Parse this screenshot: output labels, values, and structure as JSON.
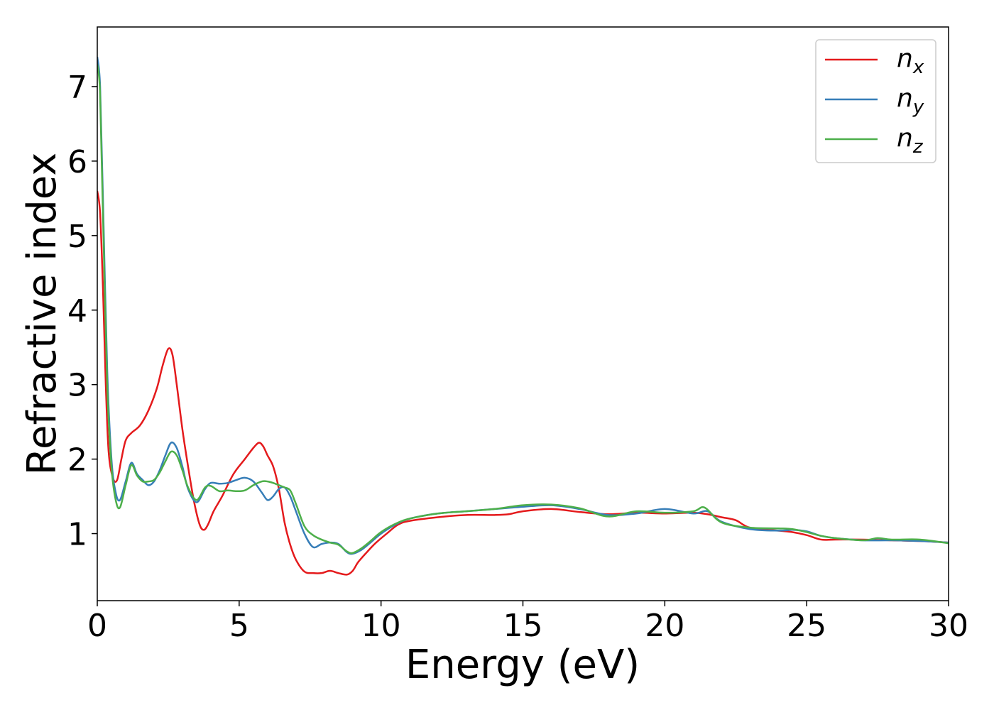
{
  "chart_data": {
    "type": "line",
    "xlabel": "Energy (eV)",
    "ylabel": "Refractive index",
    "xlim": [
      0,
      30
    ],
    "ylim": [
      0.1,
      7.8
    ],
    "xticks": [
      0,
      5,
      10,
      15,
      20,
      25,
      30
    ],
    "yticks": [
      1,
      2,
      3,
      4,
      5,
      6,
      7
    ],
    "grid": false,
    "legend_position": "top-right",
    "series": [
      {
        "name": "n",
        "subscript": "x",
        "color": "#e41a1c",
        "x": [
          0,
          0.1,
          0.2,
          0.3,
          0.4,
          0.55,
          0.7,
          0.85,
          1.0,
          1.2,
          1.5,
          1.8,
          2.1,
          2.3,
          2.5,
          2.65,
          2.8,
          3.0,
          3.2,
          3.4,
          3.6,
          3.75,
          3.9,
          4.1,
          4.4,
          4.8,
          5.2,
          5.5,
          5.7,
          5.85,
          6.0,
          6.2,
          6.4,
          6.6,
          6.8,
          7.0,
          7.3,
          7.6,
          7.9,
          8.2,
          8.5,
          8.8,
          9.0,
          9.2,
          9.5,
          9.8,
          10.2,
          10.6,
          11,
          12,
          13,
          14,
          14.5,
          15,
          16,
          17,
          18,
          19,
          20,
          21,
          21.5,
          22,
          22.5,
          23,
          24,
          24.5,
          25,
          25.5,
          26,
          27,
          28,
          29,
          30
        ],
        "y": [
          5.6,
          5.3,
          4.3,
          3.0,
          2.1,
          1.75,
          1.72,
          2.0,
          2.25,
          2.35,
          2.45,
          2.65,
          2.95,
          3.25,
          3.48,
          3.4,
          3.0,
          2.4,
          1.9,
          1.45,
          1.13,
          1.05,
          1.12,
          1.3,
          1.5,
          1.8,
          2.0,
          2.15,
          2.22,
          2.17,
          2.05,
          1.9,
          1.6,
          1.15,
          0.85,
          0.65,
          0.49,
          0.47,
          0.47,
          0.5,
          0.47,
          0.45,
          0.5,
          0.62,
          0.75,
          0.87,
          1.0,
          1.12,
          1.17,
          1.22,
          1.25,
          1.25,
          1.26,
          1.3,
          1.33,
          1.29,
          1.26,
          1.28,
          1.27,
          1.28,
          1.26,
          1.22,
          1.18,
          1.08,
          1.04,
          1.02,
          0.98,
          0.92,
          0.92,
          0.92,
          0.91,
          0.9,
          0.88
        ]
      },
      {
        "name": "n",
        "subscript": "y",
        "color": "#377eb8",
        "x": [
          0,
          0.1,
          0.2,
          0.35,
          0.5,
          0.65,
          0.8,
          1.0,
          1.2,
          1.4,
          1.6,
          1.8,
          2.0,
          2.2,
          2.4,
          2.6,
          2.8,
          3.0,
          3.2,
          3.5,
          3.8,
          4.0,
          4.3,
          4.6,
          4.9,
          5.2,
          5.5,
          5.8,
          6.0,
          6.2,
          6.4,
          6.6,
          6.8,
          7.0,
          7.3,
          7.6,
          7.9,
          8.2,
          8.5,
          8.8,
          9.0,
          9.3,
          9.6,
          10,
          10.5,
          11,
          12,
          13,
          14,
          15,
          16,
          17,
          18,
          19,
          20,
          21,
          21.5,
          22,
          23,
          24,
          24.5,
          25,
          25.5,
          26,
          27,
          28,
          29,
          30
        ],
        "y": [
          7.4,
          7.0,
          5.5,
          3.2,
          2.0,
          1.55,
          1.45,
          1.7,
          1.95,
          1.8,
          1.72,
          1.65,
          1.7,
          1.85,
          2.05,
          2.22,
          2.15,
          1.9,
          1.6,
          1.42,
          1.6,
          1.68,
          1.67,
          1.68,
          1.72,
          1.75,
          1.7,
          1.55,
          1.45,
          1.5,
          1.6,
          1.62,
          1.5,
          1.3,
          1.0,
          0.82,
          0.86,
          0.88,
          0.86,
          0.75,
          0.73,
          0.78,
          0.87,
          1.0,
          1.12,
          1.2,
          1.27,
          1.3,
          1.33,
          1.36,
          1.38,
          1.33,
          1.25,
          1.27,
          1.33,
          1.27,
          1.3,
          1.16,
          1.06,
          1.04,
          1.05,
          1.03,
          0.97,
          0.94,
          0.91,
          0.91,
          0.9,
          0.88
        ]
      },
      {
        "name": "n",
        "subscript": "z",
        "color": "#4daf4a",
        "x": [
          0,
          0.1,
          0.2,
          0.35,
          0.5,
          0.65,
          0.8,
          1.0,
          1.2,
          1.4,
          1.6,
          1.8,
          2.0,
          2.2,
          2.4,
          2.6,
          2.8,
          3.0,
          3.2,
          3.5,
          3.8,
          4.0,
          4.3,
          4.6,
          4.9,
          5.2,
          5.5,
          5.8,
          6.0,
          6.2,
          6.4,
          6.6,
          6.8,
          7.0,
          7.3,
          7.6,
          7.9,
          8.2,
          8.5,
          8.8,
          9.0,
          9.3,
          9.6,
          10,
          10.5,
          11,
          12,
          13,
          14,
          15,
          16,
          17,
          18,
          19,
          20,
          21,
          21.4,
          22,
          23,
          24,
          24.5,
          25,
          25.5,
          26,
          27,
          27.5,
          28,
          29,
          30
        ],
        "y": [
          7.3,
          6.9,
          5.3,
          3.0,
          1.9,
          1.45,
          1.35,
          1.65,
          1.92,
          1.78,
          1.7,
          1.7,
          1.72,
          1.82,
          1.97,
          2.1,
          2.05,
          1.85,
          1.62,
          1.45,
          1.62,
          1.64,
          1.57,
          1.58,
          1.57,
          1.58,
          1.65,
          1.7,
          1.7,
          1.68,
          1.65,
          1.62,
          1.58,
          1.4,
          1.1,
          0.98,
          0.92,
          0.88,
          0.85,
          0.76,
          0.74,
          0.8,
          0.89,
          1.02,
          1.13,
          1.2,
          1.27,
          1.3,
          1.33,
          1.38,
          1.39,
          1.34,
          1.23,
          1.3,
          1.28,
          1.3,
          1.35,
          1.15,
          1.08,
          1.07,
          1.06,
          1.02,
          0.97,
          0.94,
          0.91,
          0.94,
          0.92,
          0.92,
          0.87
        ]
      }
    ]
  }
}
